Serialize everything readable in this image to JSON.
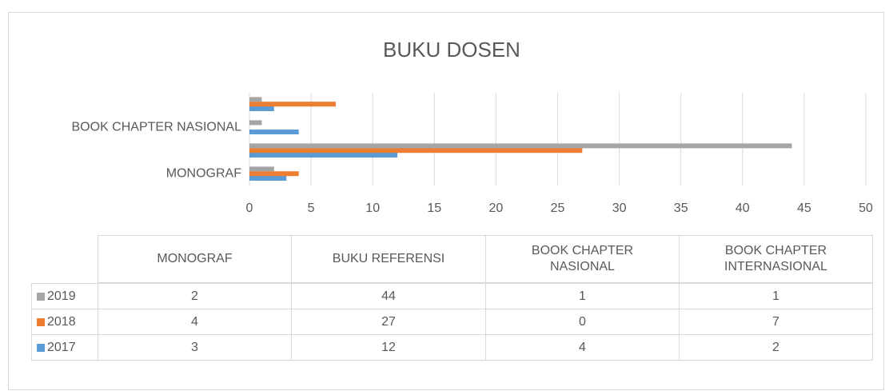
{
  "chart_data": {
    "type": "bar",
    "orientation": "horizontal",
    "title": "BUKU DOSEN",
    "categories": [
      "MONOGRAF",
      "BUKU REFERENSI",
      "BOOK CHAPTER NASIONAL",
      "BOOK CHAPTER INTERNASIONAL"
    ],
    "series": [
      {
        "name": "2017",
        "color": "#5b9bd5",
        "values": [
          3,
          12,
          4,
          2
        ]
      },
      {
        "name": "2018",
        "color": "#ed7d31",
        "values": [
          4,
          27,
          0,
          7
        ]
      },
      {
        "name": "2019",
        "color": "#a5a5a5",
        "values": [
          2,
          44,
          1,
          1
        ]
      }
    ],
    "xlim": [
      0,
      50
    ],
    "xticks": [
      0,
      5,
      10,
      15,
      20,
      25,
      30,
      35,
      40,
      45,
      50
    ],
    "grid": true,
    "data_table": true
  }
}
